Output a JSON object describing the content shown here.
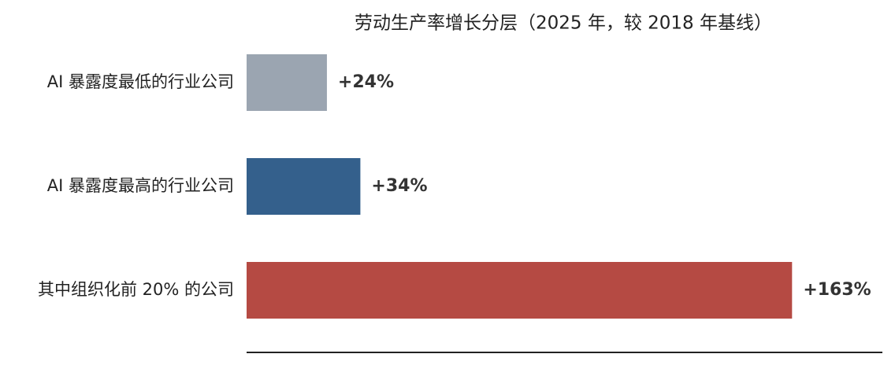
{
  "chart_data": {
    "type": "hbar",
    "title": "劳动生产率增长分层（2025 年，较 2018 年基线）",
    "categories": [
      "AI 暴露度最低的行业公司",
      "AI 暴露度最高的行业公司",
      "其中组织化前 20% 的公司"
    ],
    "values": [
      24,
      34,
      163
    ],
    "value_labels": [
      "+24%",
      "+34%",
      "+163%"
    ],
    "colors": [
      "#9ba5b1",
      "#34608c",
      "#b54a43"
    ],
    "xlim": [
      0,
      190
    ]
  }
}
